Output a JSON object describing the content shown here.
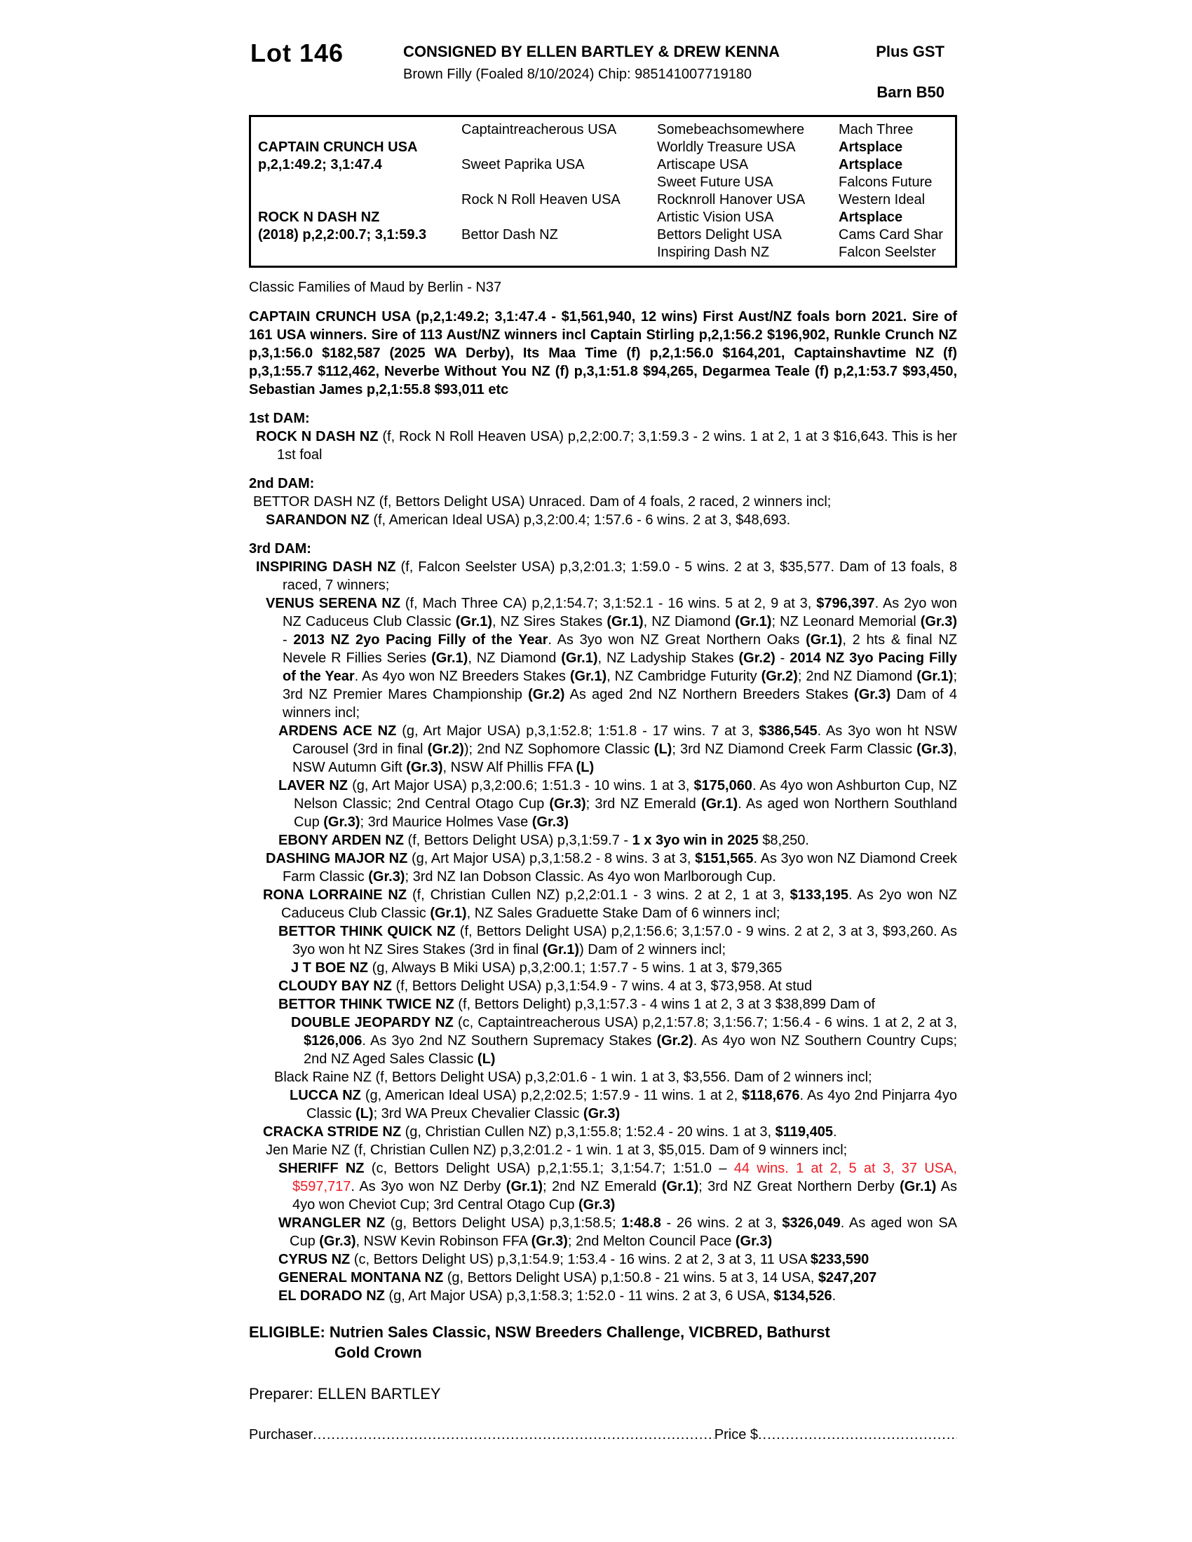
{
  "colors": {
    "red": "#ed1c24"
  },
  "header": {
    "lot": "Lot 146",
    "consigned": "CONSIGNED BY ELLEN BARTLEY & DREW KENNA",
    "description": "Brown Filly (Foaled 8/10/2024) Chip: 985141007719180",
    "plus_gst": "Plus GST",
    "barn": "Barn B50"
  },
  "pedigree_table": {
    "rows": [
      {
        "c": [
          "",
          "Captaintreacherous USA",
          "Somebeachsomewhere",
          "Mach Three"
        ],
        "b": [
          0,
          0,
          0,
          0
        ]
      },
      {
        "c": [
          "CAPTAIN CRUNCH USA",
          "",
          "Worldly Treasure USA",
          "Artsplace"
        ],
        "b": [
          1,
          0,
          0,
          1
        ]
      },
      {
        "c": [
          "p,2,1:49.2; 3,1:47.4",
          "Sweet Paprika USA",
          "Artiscape USA",
          "Artsplace"
        ],
        "b": [
          1,
          0,
          0,
          1
        ]
      },
      {
        "c": [
          "",
          "",
          "Sweet Future USA",
          "Falcons Future"
        ],
        "b": [
          0,
          0,
          0,
          0
        ]
      },
      {
        "c": [
          "",
          "Rock N Roll Heaven USA",
          "Rocknroll Hanover USA",
          "Western Ideal"
        ],
        "b": [
          0,
          0,
          0,
          0
        ]
      },
      {
        "c": [
          "ROCK N DASH NZ",
          "",
          "Artistic Vision USA",
          "Artsplace"
        ],
        "b": [
          1,
          0,
          0,
          1
        ]
      },
      {
        "c": [
          "(2018) p,2,2:00.7; 3,1:59.3",
          "Bettor Dash NZ",
          "Bettors Delight USA",
          "Cams Card Shar"
        ],
        "b": [
          1,
          0,
          0,
          0
        ]
      },
      {
        "c": [
          "",
          "",
          "Inspiring Dash NZ",
          "Falcon Seelster"
        ],
        "b": [
          0,
          0,
          0,
          0
        ]
      }
    ]
  },
  "classic_families": "Classic Families of Maud by Berlin - N37",
  "body": [
    {
      "n": "sire-summary",
      "i": 0,
      "h": 0,
      "g": 0,
      "seg": [
        {
          "t": "CAPTAIN CRUNCH USA (p,2,1:49.2; 3,1:47.4 - $1,561,940, 12 wins) First Aust/NZ foals born 2021. Sire of 161 USA winners. Sire of 113 Aust/NZ winners incl Captain Stirling p,2,1:56.2 $196,902, Runkle Crunch NZ p,3,1:56.0 $182,587 (2025 WA Derby), Its Maa Time (f) p,2,1:56.0 $164,201, Captainshavtime NZ (f) p,3,1:55.7 $112,462, Neverbe Without You NZ (f) p,3,1:51.8 $94,265, Degarmea Teale (f) p,2,1:53.7 $93,450, Sebastian James p,2,1:55.8 $93,011 etc",
          "b": 1
        }
      ]
    },
    {
      "n": "first-dam-heading",
      "i": 0,
      "h": 0,
      "g": 15,
      "seg": [
        {
          "t": "1st DAM:",
          "b": 1
        }
      ]
    },
    {
      "n": "entry-rock-n-dash",
      "i": 10,
      "h": 30,
      "g": 0,
      "seg": [
        {
          "t": "ROCK N DASH NZ",
          "b": 1
        },
        {
          "t": " (f, Rock N Roll Heaven USA) p,2,2:00.7; 3,1:59.3 - 2 wins. 1 at 2, 1 at 3 $16,643. This is her 1st foal"
        }
      ]
    },
    {
      "n": "second-dam-heading",
      "i": 0,
      "h": 0,
      "g": 15,
      "seg": [
        {
          "t": "2nd DAM:",
          "b": 1
        }
      ]
    },
    {
      "n": "entry-bettor-dash",
      "i": 6,
      "h": 30,
      "g": 0,
      "seg": [
        {
          "t": "BETTOR DASH NZ (f, Bettors Delight USA) Unraced. Dam of 4 foals, 2 raced, 2 winners incl;"
        }
      ]
    },
    {
      "n": "entry-sarandon",
      "i": 24,
      "h": 30,
      "g": 0,
      "seg": [
        {
          "t": "SARANDON NZ",
          "b": 1
        },
        {
          "t": " (f, American Ideal USA) p,3,2:00.4; 1:57.6 - 6 wins. 2 at 3, $48,693."
        }
      ]
    },
    {
      "n": "third-dam-heading",
      "i": 0,
      "h": 0,
      "g": 15,
      "seg": [
        {
          "t": "3rd DAM:",
          "b": 1
        }
      ]
    },
    {
      "n": "entry-inspiring-dash",
      "i": 10,
      "h": 38,
      "g": 0,
      "seg": [
        {
          "t": "INSPIRING DASH NZ",
          "b": 1
        },
        {
          "t": " (f, Falcon Seelster USA) p,3,2:01.3; 1:59.0 - 5 wins. 2 at 3, $35,577. Dam of 13 foals, 8 raced, 7 winners;"
        }
      ]
    },
    {
      "n": "entry-venus-serena",
      "i": 24,
      "h": 24,
      "g": 0,
      "seg": [
        {
          "t": "VENUS SERENA NZ",
          "b": 1
        },
        {
          "t": " (f, Mach Three CA) p,2,1:54.7; 3,1:52.1 - 16 wins. 5 at 2, 9 at 3, "
        },
        {
          "t": "$796,397",
          "b": 1
        },
        {
          "t": ". As 2yo won NZ Caduceus Club Classic "
        },
        {
          "t": "(Gr.1)",
          "b": 1
        },
        {
          "t": ", NZ Sires Stakes "
        },
        {
          "t": "(Gr.1)",
          "b": 1
        },
        {
          "t": ", NZ Diamond "
        },
        {
          "t": "(Gr.1)",
          "b": 1
        },
        {
          "t": "; NZ Leonard Memorial "
        },
        {
          "t": "(Gr.3)",
          "b": 1
        },
        {
          "t": " - "
        },
        {
          "t": "2013 NZ 2yo Pacing Filly of the Year",
          "b": 1
        },
        {
          "t": ". As 3yo won NZ Great Northern Oaks "
        },
        {
          "t": "(Gr.1)",
          "b": 1
        },
        {
          "t": ", 2 hts & final NZ Nevele R Fillies Series "
        },
        {
          "t": "(Gr.1)",
          "b": 1
        },
        {
          "t": ", NZ Diamond "
        },
        {
          "t": "(Gr.1)",
          "b": 1
        },
        {
          "t": ", NZ Ladyship Stakes "
        },
        {
          "t": "(Gr.2)",
          "b": 1
        },
        {
          "t": " - "
        },
        {
          "t": "2014 NZ 3yo Pacing Filly of the Year",
          "b": 1
        },
        {
          "t": ". As 4yo won NZ Breeders Stakes "
        },
        {
          "t": "(Gr.1)",
          "b": 1
        },
        {
          "t": ", NZ Cambridge Futurity "
        },
        {
          "t": "(Gr.2)",
          "b": 1
        },
        {
          "t": "; 2nd NZ Diamond "
        },
        {
          "t": "(Gr.1)",
          "b": 1
        },
        {
          "t": "; 3rd NZ Premier Mares Championship "
        },
        {
          "t": "(Gr.2)",
          "b": 1
        },
        {
          "t": " As aged 2nd NZ Northern Breeders Stakes "
        },
        {
          "t": "(Gr.3)",
          "b": 1
        },
        {
          "t": " Dam of 4 winners incl;"
        }
      ]
    },
    {
      "n": "entry-ardens-ace",
      "i": 42,
      "h": 20,
      "g": 0,
      "seg": [
        {
          "t": "ARDENS ACE NZ",
          "b": 1
        },
        {
          "t": " (g, Art Major USA) p,3,1:52.8; 1:51.8 - 17 wins. 7 at 3, "
        },
        {
          "t": "$386,545",
          "b": 1
        },
        {
          "t": ". As 3yo won ht NSW Carousel (3rd in final "
        },
        {
          "t": "(Gr.2)",
          "b": 1
        },
        {
          "t": "); 2nd NZ Sophomore Classic "
        },
        {
          "t": "(L)",
          "b": 1
        },
        {
          "t": "; 3rd NZ Diamond Creek Farm Classic "
        },
        {
          "t": "(Gr.3)",
          "b": 1
        },
        {
          "t": ", NSW Autumn Gift "
        },
        {
          "t": "(Gr.3)",
          "b": 1
        },
        {
          "t": ", NSW Alf Phillis FFA "
        },
        {
          "t": "(L)",
          "b": 1
        }
      ]
    },
    {
      "n": "entry-laver",
      "i": 42,
      "h": 22,
      "g": 0,
      "seg": [
        {
          "t": "LAVER NZ",
          "b": 1
        },
        {
          "t": " (g, Art Major USA) p,3,2:00.6; 1:51.3 - 10 wins. 1 at 3, "
        },
        {
          "t": "$175,060",
          "b": 1
        },
        {
          "t": ". As 4yo won Ashburton Cup, NZ Nelson Classic; 2nd Central Otago Cup "
        },
        {
          "t": "(Gr.3)",
          "b": 1
        },
        {
          "t": "; 3rd NZ Emerald "
        },
        {
          "t": "(Gr.1)",
          "b": 1
        },
        {
          "t": ". As aged won Northern Southland Cup "
        },
        {
          "t": "(Gr.3)",
          "b": 1
        },
        {
          "t": "; 3rd Maurice Holmes Vase "
        },
        {
          "t": "(Gr.3)",
          "b": 1
        }
      ]
    },
    {
      "n": "entry-ebony-arden",
      "i": 42,
      "h": 20,
      "g": 0,
      "seg": [
        {
          "t": "EBONY ARDEN NZ",
          "b": 1
        },
        {
          "t": " (f, Bettors Delight USA) p,3,1:59.7 - "
        },
        {
          "t": "1 x 3yo win in 2025",
          "b": 1
        },
        {
          "t": " $8,250."
        }
      ]
    },
    {
      "n": "entry-dashing-major",
      "i": 24,
      "h": 24,
      "g": 0,
      "seg": [
        {
          "t": "DASHING MAJOR NZ",
          "b": 1
        },
        {
          "t": " (g, Art Major USA) p,3,1:58.2 - 8 wins. 3 at 3, "
        },
        {
          "t": "$151,565",
          "b": 1
        },
        {
          "t": ". As 3yo won NZ Diamond Creek Farm Classic "
        },
        {
          "t": "(Gr.3)",
          "b": 1
        },
        {
          "t": "; 3rd NZ Ian Dobson Classic. As 4yo won Marlborough Cup."
        }
      ]
    },
    {
      "n": "entry-rona-lorraine",
      "i": 20,
      "h": 26,
      "g": 0,
      "seg": [
        {
          "t": "RONA LORRAINE NZ",
          "b": 1
        },
        {
          "t": " (f, Christian Cullen NZ) p,2,2:01.1 - 3 wins. 2 at 2, 1 at 3, "
        },
        {
          "t": "$133,195",
          "b": 1
        },
        {
          "t": ". As 2yo won NZ Caduceus Club Classic "
        },
        {
          "t": "(Gr.1)",
          "b": 1
        },
        {
          "t": ", NZ Sales Graduette Stake Dam of 6 winners incl;"
        }
      ]
    },
    {
      "n": "entry-bettor-think-quick",
      "i": 42,
      "h": 20,
      "g": 0,
      "seg": [
        {
          "t": "BETTOR THINK QUICK NZ",
          "b": 1
        },
        {
          "t": " (f, Bettors Delight USA) p,2,1:56.6; 3,1:57.0 - 9 wins. 2 at 2, 3 at 3, $93,260. As 3yo won ht NZ Sires Stakes (3rd in final "
        },
        {
          "t": "(Gr.1)",
          "b": 1
        },
        {
          "t": ") Dam of 2 winners incl;"
        }
      ]
    },
    {
      "n": "entry-j-t-boe",
      "i": 60,
      "h": 20,
      "g": 0,
      "seg": [
        {
          "t": "J T BOE NZ",
          "b": 1
        },
        {
          "t": " (g, Always B Miki USA) p,3,2:00.1; 1:57.7 - 5 wins. 1 at 3, $79,365"
        }
      ]
    },
    {
      "n": "entry-cloudy-bay",
      "i": 42,
      "h": 20,
      "g": 0,
      "seg": [
        {
          "t": "CLOUDY BAY NZ",
          "b": 1
        },
        {
          "t": " (f, Bettors Delight USA) p,3,1:54.9 - 7 wins. 4 at 3, $73,958. At stud"
        }
      ]
    },
    {
      "n": "entry-bettor-think-twice",
      "i": 42,
      "h": 20,
      "g": 0,
      "seg": [
        {
          "t": "BETTOR THINK TWICE NZ",
          "b": 1
        },
        {
          "t": " (f, Bettors Delight) p,3,1:57.3 - 4 wins 1 at 2, 3 at 3 $38,899 Dam of"
        }
      ]
    },
    {
      "n": "entry-double-jeopardy",
      "i": 60,
      "h": 18,
      "g": 0,
      "seg": [
        {
          "t": "DOUBLE JEOPARDY NZ",
          "b": 1
        },
        {
          "t": " (c, Captaintreacherous USA) p,2,1:57.8; 3,1:56.7; 1:56.4 - 6 wins. 1 at 2, 2 at 3, "
        },
        {
          "t": "$126,006",
          "b": 1
        },
        {
          "t": ". As 3yo 2nd NZ Southern Supremacy Stakes "
        },
        {
          "t": "(Gr.2)",
          "b": 1
        },
        {
          "t": ". As 4yo won NZ Southern Country Cups; 2nd NZ Aged Sales Classic "
        },
        {
          "t": "(L)",
          "b": 1
        }
      ]
    },
    {
      "n": "entry-black-raine",
      "i": 36,
      "h": 24,
      "g": 0,
      "seg": [
        {
          "t": "Black Raine NZ (f, Bettors Delight USA) p,3,2:01.6 - 1 win. 1 at 3, $3,556. Dam of 2 winners incl;"
        }
      ]
    },
    {
      "n": "entry-lucca",
      "i": 58,
      "h": 24,
      "g": 0,
      "seg": [
        {
          "t": "LUCCA NZ",
          "b": 1
        },
        {
          "t": " (g, American Ideal USA) p,2,2:02.5; 1:57.9 - 11 wins. 1 at 2, "
        },
        {
          "t": "$118,676",
          "b": 1
        },
        {
          "t": ". As 4yo 2nd Pinjarra 4yo Classic "
        },
        {
          "t": "(L)",
          "b": 1
        },
        {
          "t": "; 3rd WA Preux Chevalier Classic "
        },
        {
          "t": "(Gr.3)",
          "b": 1
        }
      ]
    },
    {
      "n": "entry-cracka-stride",
      "i": 20,
      "h": 24,
      "g": 0,
      "seg": [
        {
          "t": "CRACKA STRIDE NZ",
          "b": 1
        },
        {
          "t": " (g, Christian Cullen NZ) p,3,1:55.8; 1:52.4 - 20 wins. 1 at 3, "
        },
        {
          "t": "$119,405",
          "b": 1
        },
        {
          "t": "."
        }
      ]
    },
    {
      "n": "entry-jen-marie",
      "i": 24,
      "h": 24,
      "g": 0,
      "seg": [
        {
          "t": "Jen Marie NZ (f, Christian Cullen NZ) p,3,2:01.2 - 1 win. 1 at 3, $5,015. Dam of 9 winners incl;"
        }
      ]
    },
    {
      "n": "entry-sheriff",
      "i": 42,
      "h": 20,
      "g": 0,
      "seg": [
        {
          "t": "SHERIFF NZ",
          "b": 1
        },
        {
          "t": " (c, Bettors Delight USA) p,2,1:55.1; 3,1:54.7; 1:51.0 – "
        },
        {
          "t": "44 wins. 1 at 2, 5 at 3, 37 USA, $597,717",
          "r": 1
        },
        {
          "t": ". As 3yo won NZ Derby "
        },
        {
          "t": "(Gr.1)",
          "b": 1
        },
        {
          "t": "; 2nd NZ Emerald "
        },
        {
          "t": "(Gr.1)",
          "b": 1
        },
        {
          "t": "; 3rd NZ Great Northern Derby "
        },
        {
          "t": "(Gr.1)",
          "b": 1
        },
        {
          "t": " As 4yo won Cheviot Cup; 3rd Central Otago Cup "
        },
        {
          "t": "(Gr.3)",
          "b": 1
        }
      ]
    },
    {
      "n": "entry-wrangler",
      "i": 42,
      "h": 16,
      "g": 0,
      "seg": [
        {
          "t": "WRANGLER NZ",
          "b": 1
        },
        {
          "t": " (g, Bettors Delight USA) p,3,1:58.5; "
        },
        {
          "t": "1:48.8",
          "b": 1
        },
        {
          "t": " - 26 wins. 2 at 3, "
        },
        {
          "t": "$326,049",
          "b": 1
        },
        {
          "t": ". As aged won SA Cup "
        },
        {
          "t": "(Gr.3)",
          "b": 1
        },
        {
          "t": ", NSW Kevin Robinson FFA "
        },
        {
          "t": "(Gr.3)",
          "b": 1
        },
        {
          "t": "; 2nd Melton Council Pace "
        },
        {
          "t": "(Gr.3)",
          "b": 1
        }
      ]
    },
    {
      "n": "entry-cyrus",
      "i": 42,
      "h": 16,
      "g": 0,
      "seg": [
        {
          "t": "CYRUS NZ",
          "b": 1
        },
        {
          "t": " (c, Bettors Delight US) p,3,1:54.9; 1:53.4 - 16 wins. 2 at 2, 3 at 3, 11 USA "
        },
        {
          "t": "$233,590",
          "b": 1
        }
      ]
    },
    {
      "n": "entry-general-montana",
      "i": 42,
      "h": 16,
      "g": 0,
      "seg": [
        {
          "t": "GENERAL MONTANA NZ",
          "b": 1
        },
        {
          "t": " (g, Bettors Delight USA) p,1:50.8 - 21 wins. 5 at 3, 14 USA, "
        },
        {
          "t": "$247,207",
          "b": 1
        }
      ]
    },
    {
      "n": "entry-el-dorado",
      "i": 42,
      "h": 16,
      "g": 0,
      "seg": [
        {
          "t": "EL DORADO NZ",
          "b": 1
        },
        {
          "t": " (g, Art Major USA) p,3,1:58.3; 1:52.0 - 11 wins. 2 at 3, 6 USA, "
        },
        {
          "t": "$134,526",
          "b": 1
        },
        {
          "t": "."
        }
      ]
    },
    {
      "n": "eligible-line-1",
      "i": 0,
      "h": 0,
      "g": 24,
      "cls": "eligible",
      "seg": [
        {
          "t": "ELIGIBLE: Nutrien Sales Classic, NSW Breeders Challenge, VICBRED, Bathurst",
          "b": 1
        }
      ]
    },
    {
      "n": "eligible-line-2",
      "i": 122,
      "h": 0,
      "g": 0,
      "cls": "eligible",
      "seg": [
        {
          "t": "Gold Crown",
          "b": 1
        }
      ]
    },
    {
      "n": "preparer-line",
      "i": 0,
      "h": 0,
      "g": 32,
      "cls": "preparer",
      "seg": [
        {
          "t": "Preparer: ELLEN BARTLEY"
        }
      ]
    }
  ],
  "purchaser": {
    "label": "Purchaser",
    "leader": "..........................................................................................................................................................",
    "price_label": "Price $",
    "trailing": ".........................................................................."
  }
}
